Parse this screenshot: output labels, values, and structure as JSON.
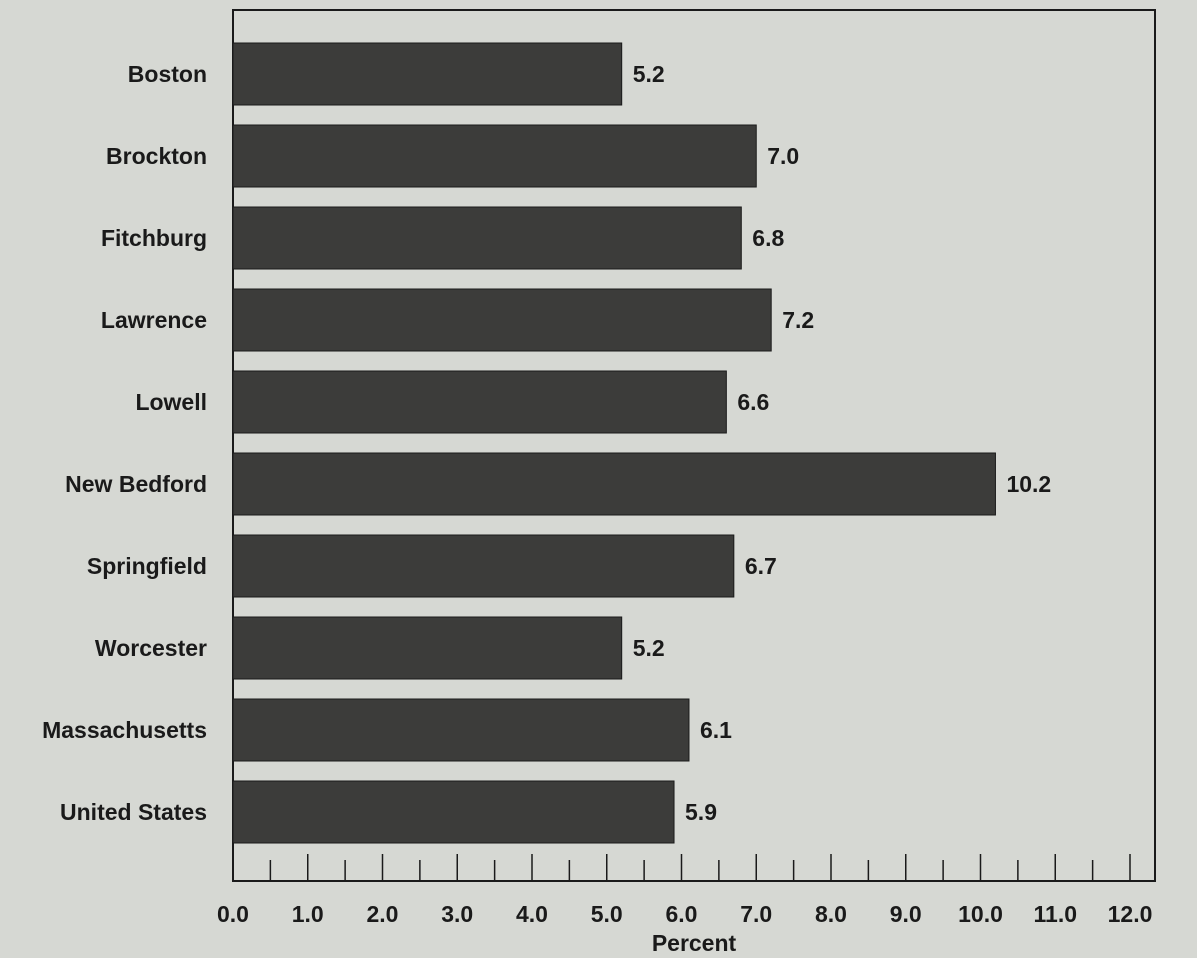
{
  "chart_data": {
    "type": "bar",
    "orientation": "horizontal",
    "categories": [
      "Boston",
      "Brockton",
      "Fitchburg",
      "Lawrence",
      "Lowell",
      "New Bedford",
      "Springfield",
      "Worcester",
      "Massachusetts",
      "United States"
    ],
    "values": [
      5.2,
      7.0,
      6.8,
      7.2,
      6.6,
      10.2,
      6.7,
      5.2,
      6.1,
      5.9
    ],
    "value_labels": [
      "5.2",
      "7.0",
      "6.8",
      "7.2",
      "6.6",
      "10.2",
      "6.7",
      "5.2",
      "6.1",
      "5.9"
    ],
    "xlabel": "Percent",
    "ylabel": "",
    "xlim": [
      0,
      12
    ],
    "xticks": [
      0,
      1,
      2,
      3,
      4,
      5,
      6,
      7,
      8,
      9,
      10,
      11,
      12
    ],
    "xtick_labels": [
      "0.0",
      "1.0",
      "2.0",
      "3.0",
      "4.0",
      "5.0",
      "6.0",
      "7.0",
      "8.0",
      "9.0",
      "10.0",
      "11.0",
      "12.0"
    ],
    "grid": false,
    "legend": "none",
    "bar_color": "#3c3c3a",
    "background_color": "#d6d8d3"
  }
}
